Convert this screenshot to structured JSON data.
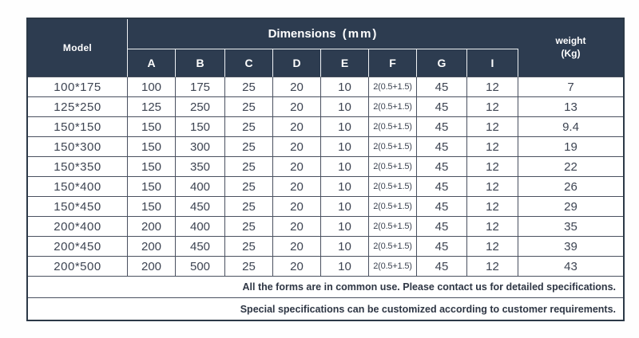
{
  "table": {
    "header": {
      "model_label": "Model",
      "dimensions_label": "Dimensions",
      "dimensions_unit": "(mm)",
      "dimension_columns": [
        "A",
        "B",
        "C",
        "D",
        "E",
        "F",
        "G",
        "I"
      ],
      "weight_label": "weight",
      "weight_unit": "(Kg)"
    },
    "column_keys": [
      "model",
      "a",
      "b",
      "c",
      "d",
      "e",
      "f",
      "g",
      "i",
      "weight"
    ],
    "rows": [
      {
        "model": "100*175",
        "a": "100",
        "b": "175",
        "c": "25",
        "d": "20",
        "e": "10",
        "f": "2(0.5+1.5)",
        "g": "45",
        "i": "12",
        "weight": "7"
      },
      {
        "model": "125*250",
        "a": "125",
        "b": "250",
        "c": "25",
        "d": "20",
        "e": "10",
        "f": "2(0.5+1.5)",
        "g": "45",
        "i": "12",
        "weight": "13"
      },
      {
        "model": "150*150",
        "a": "150",
        "b": "150",
        "c": "25",
        "d": "20",
        "e": "10",
        "f": "2(0.5+1.5)",
        "g": "45",
        "i": "12",
        "weight": "9.4"
      },
      {
        "model": "150*300",
        "a": "150",
        "b": "300",
        "c": "25",
        "d": "20",
        "e": "10",
        "f": "2(0.5+1.5)",
        "g": "45",
        "i": "12",
        "weight": "19"
      },
      {
        "model": "150*350",
        "a": "150",
        "b": "350",
        "c": "25",
        "d": "20",
        "e": "10",
        "f": "2(0.5+1.5)",
        "g": "45",
        "i": "12",
        "weight": "22"
      },
      {
        "model": "150*400",
        "a": "150",
        "b": "400",
        "c": "25",
        "d": "20",
        "e": "10",
        "f": "2(0.5+1.5)",
        "g": "45",
        "i": "12",
        "weight": "26"
      },
      {
        "model": "150*450",
        "a": "150",
        "b": "450",
        "c": "25",
        "d": "20",
        "e": "10",
        "f": "2(0.5+1.5)",
        "g": "45",
        "i": "12",
        "weight": "29"
      },
      {
        "model": "200*400",
        "a": "200",
        "b": "400",
        "c": "25",
        "d": "20",
        "e": "10",
        "f": "2(0.5+1.5)",
        "g": "45",
        "i": "12",
        "weight": "35"
      },
      {
        "model": "200*450",
        "a": "200",
        "b": "450",
        "c": "25",
        "d": "20",
        "e": "10",
        "f": "2(0.5+1.5)",
        "g": "45",
        "i": "12",
        "weight": "39"
      },
      {
        "model": "200*500",
        "a": "200",
        "b": "500",
        "c": "25",
        "d": "20",
        "e": "10",
        "f": "2(0.5+1.5)",
        "g": "45",
        "i": "12",
        "weight": "43"
      }
    ],
    "notes": [
      "All the forms are in common use. Please contact us for detailed specifications.",
      "Special specifications can be customized according to customer requirements."
    ]
  },
  "colors": {
    "header_bg": "#2d3c50",
    "header_text": "#ffffff",
    "body_text": "#3d4452",
    "grid_line": "#4a5160",
    "outer_border": "#2c3947"
  }
}
